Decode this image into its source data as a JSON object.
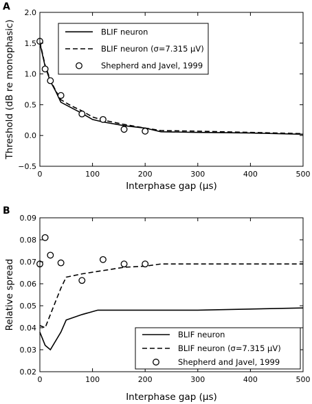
{
  "chart_data": [
    {
      "type": "line",
      "panel_label": "A",
      "xlabel": "Interphase gap (μs)",
      "ylabel": "Threshold (dB re monophasic)",
      "xlim": [
        0,
        500
      ],
      "ylim": [
        -0.5,
        2.0
      ],
      "xticks": [
        "0",
        "100",
        "200",
        "300",
        "400",
        "500"
      ],
      "yticks": [
        "−0.5",
        "0.0",
        "0.5",
        "1.0",
        "1.5",
        "2.0"
      ],
      "legend_position": "top-right",
      "series": [
        {
          "name": "BLIF neuron",
          "style": "solid",
          "x": [
            0,
            10,
            20,
            30,
            40,
            60,
            80,
            100,
            120,
            160,
            200,
            230,
            300,
            400,
            500
          ],
          "y": [
            1.5,
            1.12,
            0.88,
            0.72,
            0.54,
            0.45,
            0.36,
            0.26,
            0.22,
            0.16,
            0.12,
            0.06,
            0.05,
            0.04,
            0.02
          ]
        },
        {
          "name": "BLIF neuron (σ=7.315 μV)",
          "style": "dashed",
          "x": [
            0,
            10,
            20,
            30,
            40,
            60,
            80,
            100,
            120,
            160,
            200,
            230,
            300,
            400,
            500
          ],
          "y": [
            1.52,
            1.14,
            0.9,
            0.73,
            0.58,
            0.48,
            0.4,
            0.3,
            0.25,
            0.18,
            0.12,
            0.08,
            0.07,
            0.05,
            0.03
          ]
        },
        {
          "name": "Shepherd and Javel, 1999",
          "style": "markers",
          "x": [
            0,
            10,
            20,
            40,
            80,
            120,
            160,
            200
          ],
          "y": [
            1.53,
            1.08,
            0.89,
            0.65,
            0.35,
            0.26,
            0.1,
            0.07
          ]
        }
      ]
    },
    {
      "type": "line",
      "panel_label": "B",
      "xlabel": "Interphase gap (μs)",
      "ylabel": "Relative spread",
      "xlim": [
        0,
        500
      ],
      "ylim": [
        0.02,
        0.09
      ],
      "xticks": [
        "0",
        "100",
        "200",
        "300",
        "400",
        "500"
      ],
      "yticks": [
        "0.02",
        "0.03",
        "0.04",
        "0.05",
        "0.06",
        "0.07",
        "0.08",
        "0.09"
      ],
      "legend_position": "bottom-right",
      "series": [
        {
          "name": "BLIF neuron",
          "style": "solid",
          "x": [
            0,
            10,
            20,
            40,
            50,
            80,
            110,
            200,
            300,
            400,
            500
          ],
          "y": [
            0.038,
            0.032,
            0.03,
            0.038,
            0.0435,
            0.046,
            0.048,
            0.048,
            0.048,
            0.0485,
            0.049
          ]
        },
        {
          "name": "BLIF neuron (σ=7.315 μV)",
          "style": "dashed",
          "x": [
            0,
            10,
            20,
            40,
            50,
            80,
            120,
            160,
            200,
            230,
            300,
            400,
            500
          ],
          "y": [
            0.041,
            0.04,
            0.046,
            0.058,
            0.063,
            0.0645,
            0.066,
            0.0675,
            0.068,
            0.069,
            0.069,
            0.069,
            0.069
          ]
        },
        {
          "name": "Shepherd and Javel, 1999",
          "style": "markers",
          "x": [
            0,
            10,
            20,
            40,
            80,
            120,
            160,
            200
          ],
          "y": [
            0.069,
            0.081,
            0.073,
            0.0695,
            0.0615,
            0.071,
            0.069,
            0.069
          ]
        }
      ]
    }
  ]
}
